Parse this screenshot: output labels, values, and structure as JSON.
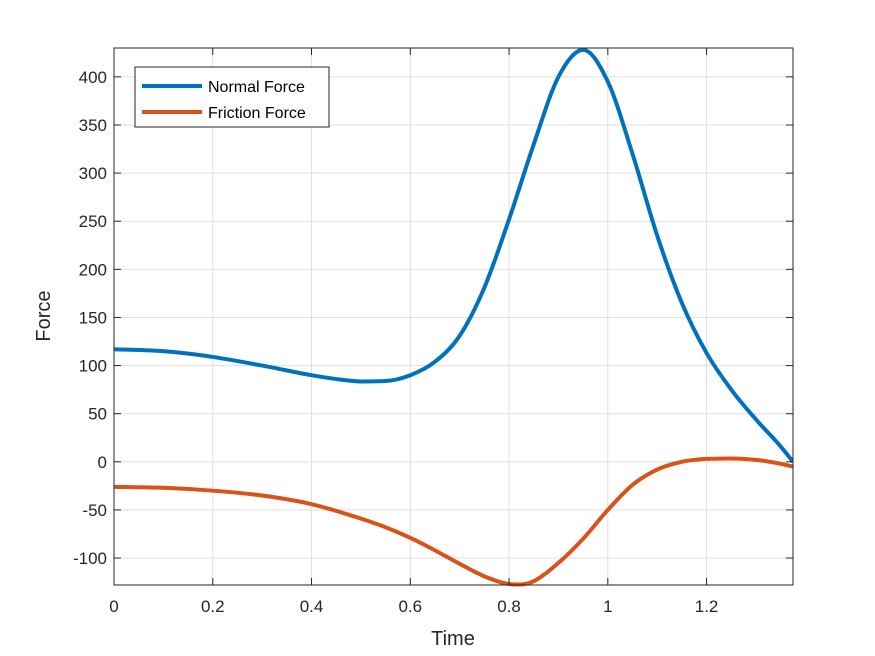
{
  "chart_data": {
    "type": "line",
    "xlabel": "Time",
    "ylabel": "Force",
    "xlim": [
      0,
      1.375
    ],
    "ylim": [
      -128,
      430
    ],
    "xticks": [
      0,
      0.2,
      0.4,
      0.6,
      0.8,
      1,
      1.2
    ],
    "xtick_labels": [
      "0",
      "0.2",
      "0.4",
      "0.6",
      "0.8",
      "1",
      "1.2"
    ],
    "yticks": [
      -100,
      -50,
      0,
      50,
      100,
      150,
      200,
      250,
      300,
      350,
      400
    ],
    "ytick_labels": [
      "-100",
      "-50",
      "0",
      "50",
      "100",
      "150",
      "200",
      "250",
      "300",
      "350",
      "400"
    ],
    "grid": true,
    "legend_position": "top-left",
    "series": [
      {
        "name": "Normal Force",
        "color": "#0072BD",
        "x": [
          0,
          0.1,
          0.2,
          0.3,
          0.4,
          0.45,
          0.5,
          0.55,
          0.6,
          0.65,
          0.7,
          0.75,
          0.8,
          0.85,
          0.9,
          0.95,
          1.0,
          1.05,
          1.1,
          1.15,
          1.2,
          1.25,
          1.3,
          1.35,
          1.375
        ],
        "y": [
          117,
          115,
          109,
          100,
          90,
          86,
          83.5,
          84,
          90,
          104,
          131,
          181,
          252,
          330,
          400,
          428,
          395,
          320,
          235,
          165,
          113,
          75,
          44,
          16,
          0
        ]
      },
      {
        "name": "Friction Force",
        "color": "#D95319",
        "x": [
          0,
          0.1,
          0.2,
          0.3,
          0.4,
          0.5,
          0.55,
          0.6,
          0.65,
          0.7,
          0.75,
          0.8,
          0.82,
          0.85,
          0.9,
          0.95,
          1.0,
          1.05,
          1.1,
          1.15,
          1.2,
          1.25,
          1.3,
          1.35,
          1.375
        ],
        "y": [
          -26,
          -27,
          -30,
          -35,
          -44,
          -59,
          -68,
          -79,
          -92,
          -106,
          -119,
          -127,
          -127.5,
          -124,
          -105,
          -80,
          -50,
          -24,
          -8,
          0,
          3,
          3.5,
          2,
          -2,
          -5
        ]
      }
    ]
  }
}
